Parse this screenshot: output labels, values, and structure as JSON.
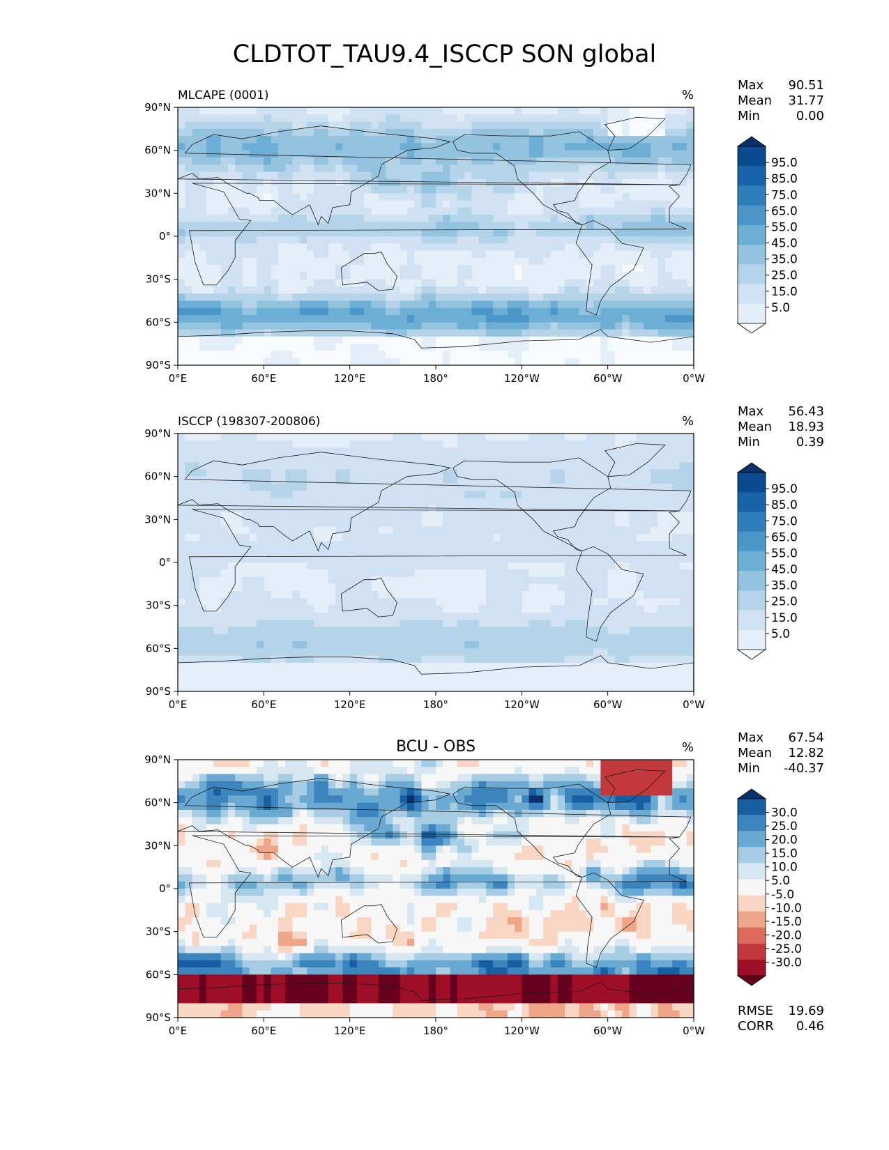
{
  "title": "CLDTOT_TAU9.4_ISCCP SON global",
  "axes": {
    "lat_ticks": [
      "90°N",
      "60°N",
      "30°N",
      "0°",
      "30°S",
      "60°S",
      "90°S"
    ],
    "lon_ticks": [
      "0°E",
      "60°E",
      "120°E",
      "180°",
      "120°W",
      "60°W",
      "0°W"
    ]
  },
  "panels": [
    {
      "id": "model",
      "left_title": "MLCAPE (0001)",
      "center_title": "",
      "units": "%",
      "stats": [
        {
          "label": "Max",
          "value": "90.51"
        },
        {
          "label": "Mean",
          "value": "31.77"
        },
        {
          "label": "Min",
          "value": "0.00"
        }
      ],
      "colorbar": {
        "tick_labels": [
          "95.0",
          "85.0",
          "75.0",
          "65.0",
          "55.0",
          "45.0",
          "35.0",
          "25.0",
          "15.0",
          "5.0"
        ],
        "colors": [
          "#f7fbff",
          "#e3eef9",
          "#cfe1f2",
          "#b5d4e9",
          "#93c3df",
          "#6daed5",
          "#4b97c9",
          "#2f7ebc",
          "#1864aa",
          "#0a4a90",
          "#08306b"
        ]
      }
    },
    {
      "id": "obs",
      "left_title": "ISCCP (198307-200806)",
      "center_title": "",
      "units": "%",
      "stats": [
        {
          "label": "Max",
          "value": "56.43"
        },
        {
          "label": "Mean",
          "value": "18.93"
        },
        {
          "label": "Min",
          "value": "0.39"
        }
      ],
      "colorbar": {
        "tick_labels": [
          "95.0",
          "85.0",
          "75.0",
          "65.0",
          "55.0",
          "45.0",
          "35.0",
          "25.0",
          "15.0",
          "5.0"
        ],
        "colors": [
          "#f7fbff",
          "#e3eef9",
          "#cfe1f2",
          "#b5d4e9",
          "#93c3df",
          "#6daed5",
          "#4b97c9",
          "#2f7ebc",
          "#1864aa",
          "#0a4a90",
          "#08306b"
        ]
      }
    },
    {
      "id": "diff",
      "left_title": "",
      "center_title": "BCU - OBS",
      "units": "%",
      "stats": [
        {
          "label": "Max",
          "value": "67.54"
        },
        {
          "label": "Mean",
          "value": "12.82"
        },
        {
          "label": "Min",
          "value": "-40.37"
        }
      ],
      "extra_stats": [
        {
          "label": "RMSE",
          "value": "19.69"
        },
        {
          "label": "CORR",
          "value": "0.46"
        }
      ],
      "colorbar": {
        "tick_labels": [
          "30.0",
          "25.0",
          "20.0",
          "15.0",
          "10.0",
          "5.0",
          "-5.0",
          "-10.0",
          "-15.0",
          "-20.0",
          "-25.0",
          "-30.0"
        ],
        "colors": [
          "#67001f",
          "#9e0e26",
          "#c3383c",
          "#dc6b5b",
          "#eea58a",
          "#f9d5c3",
          "#f7f7f7",
          "#d6e7f2",
          "#a6cde3",
          "#6aaad2",
          "#3c84bd",
          "#175ea3",
          "#08306b"
        ]
      }
    }
  ],
  "colormaps": {
    "blues": [
      "#f7fbff",
      "#e3eef9",
      "#cfe1f2",
      "#b5d4e9",
      "#93c3df",
      "#6daed5",
      "#4b97c9",
      "#2f7ebc",
      "#1864aa",
      "#0a4a90",
      "#08306b"
    ],
    "diverging": [
      "#67001f",
      "#9e0e26",
      "#c3383c",
      "#dc6b5b",
      "#eea58a",
      "#f9d5c3",
      "#f7f7f7",
      "#d6e7f2",
      "#a6cde3",
      "#6aaad2",
      "#3c84bd",
      "#175ea3",
      "#08306b"
    ]
  }
}
